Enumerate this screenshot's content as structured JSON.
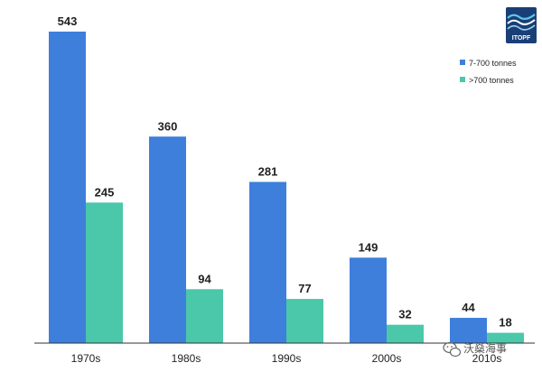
{
  "logo": {
    "text": "ITOPF"
  },
  "watermark": {
    "text": "沃燊海事",
    "icon": "wechat-icon"
  },
  "colors": {
    "series_small": "#3e7fdc",
    "series_large": "#4bc7aa",
    "axis": "#333333",
    "logo_bg": "#1a3f77"
  },
  "chart_data": {
    "type": "bar",
    "categories": [
      "1970s",
      "1980s",
      "1990s",
      "2000s",
      "2010s"
    ],
    "series": [
      {
        "name": "7-700 tonnes",
        "values": [
          543,
          360,
          281,
          149,
          44
        ]
      },
      {
        "name": ">700 tonnes",
        "values": [
          245,
          94,
          77,
          32,
          18
        ]
      }
    ],
    "title": "",
    "xlabel": "",
    "ylabel": "",
    "ylim": [
      0,
      543
    ],
    "grid": false,
    "legend_position": "top-right"
  }
}
